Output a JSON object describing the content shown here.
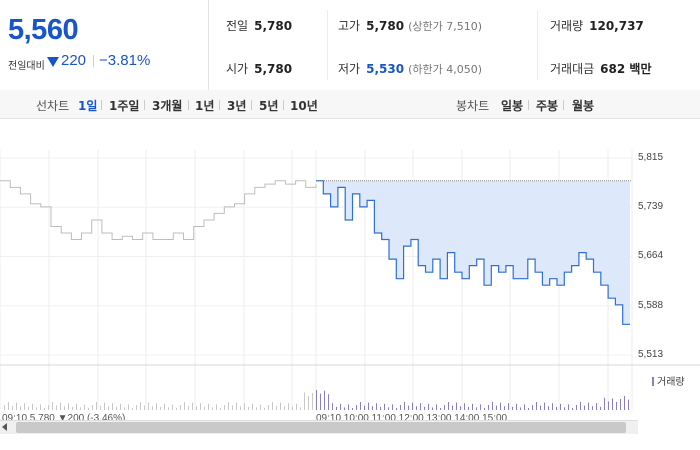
{
  "summary": {
    "price": "5,560",
    "change_label": "전일대비",
    "change_value": "220",
    "change_pct": "−3.81%",
    "stats": {
      "prev_close": {
        "label": "전일",
        "value": "5,780"
      },
      "open": {
        "label": "시가",
        "value": "5,780"
      },
      "high": {
        "label": "고가",
        "value": "5,780",
        "sub": "(상한가 7,510)"
      },
      "low": {
        "label": "저가",
        "value": "5,530",
        "sub": "(하한가 4,050)"
      },
      "volume": {
        "label": "거래량",
        "value": "120,737"
      },
      "trade_amount": {
        "label": "거래대금",
        "value": "682 백만"
      }
    }
  },
  "tabs": {
    "line_title": "선차트",
    "line_tabs": [
      "1일",
      "1주일",
      "3개월",
      "1년",
      "3년",
      "5년",
      "10년"
    ],
    "active": "1일",
    "candle_title": "봉차트",
    "candle_tabs": [
      "일봉",
      "주봉",
      "월봉"
    ]
  },
  "chart_data": {
    "type": "line",
    "y_ticks": [
      "5,815",
      "5,739",
      "5,664",
      "5,588",
      "5,513"
    ],
    "ylim": [
      5513,
      5815
    ],
    "prev_close_value": 5780,
    "legend": "거래량",
    "series": [
      {
        "values": [
          5780,
          5770,
          5760,
          5745,
          5740,
          5710,
          5700,
          5690,
          5700,
          5720,
          5700,
          5690,
          5695,
          5690,
          5700,
          5690,
          5690,
          5700,
          5690,
          5710,
          5720,
          5730,
          5740,
          5745,
          5760,
          5770,
          5775,
          5780,
          5775,
          5780,
          5770,
          5775
        ]
      },
      {
        "values": [
          5780,
          5760,
          5740,
          5770,
          5720,
          5760,
          5740,
          5750,
          5700,
          5690,
          5660,
          5630,
          5680,
          5690,
          5650,
          5640,
          5660,
          5630,
          5670,
          5640,
          5630,
          5650,
          5660,
          5620,
          5650,
          5640,
          5650,
          5630,
          5630,
          5660,
          5640,
          5620,
          5630,
          5620,
          5640,
          5650,
          5670,
          5660,
          5640,
          5620,
          5600,
          5590,
          5560,
          5560
        ]
      }
    ]
  },
  "cut_texts": {
    "left": "09:10 5,780 ▼200 (-3.46%)",
    "right": "09:10 10:00 11:00 12:00 13:00 14:00 15:00"
  }
}
